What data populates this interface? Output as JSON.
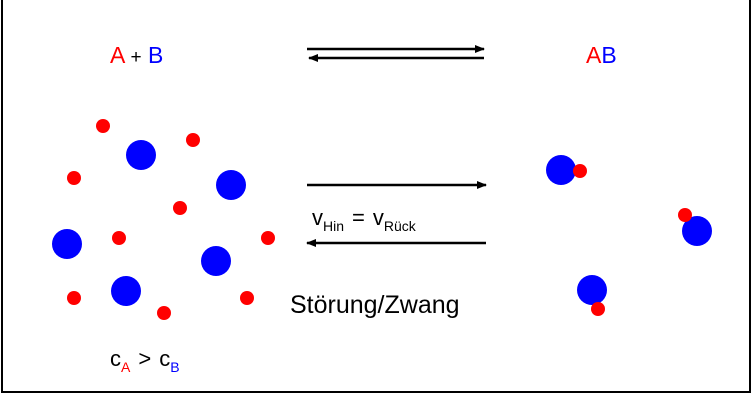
{
  "reaction": {
    "reactant_a": "A",
    "plus": "+",
    "reactant_b": "B",
    "product_a": "A",
    "product_b": "B"
  },
  "rates": {
    "v1": "v",
    "hin": "Hin",
    "equals": "=",
    "v2": "v",
    "rueck": "Rück"
  },
  "disturbance": "Störung/Zwang",
  "concentration": {
    "c1": "c",
    "a": "A",
    "gt": ">",
    "c2": "c",
    "b": "B"
  }
}
